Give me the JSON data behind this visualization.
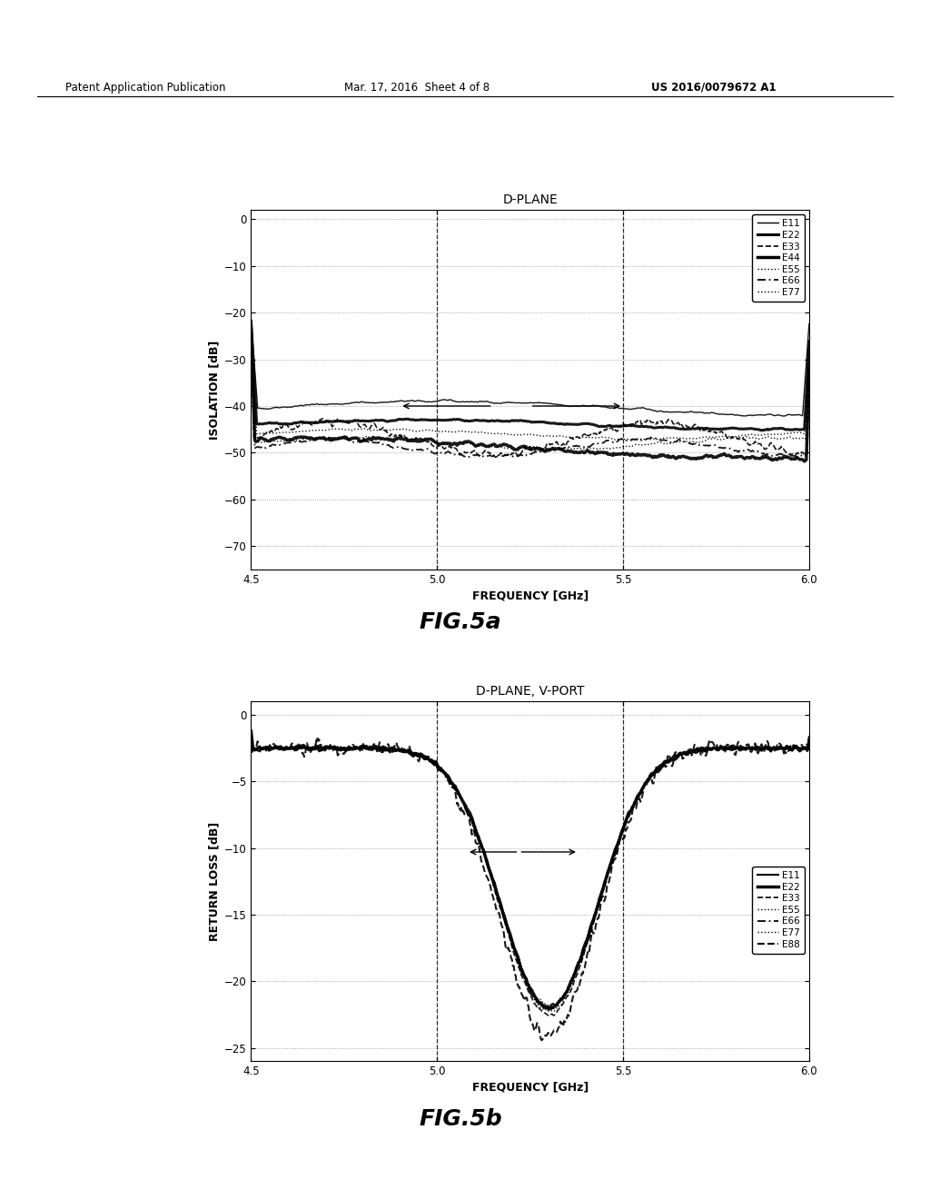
{
  "page_title": "Patent Application Publication",
  "page_date": "Mar. 17, 2016  Sheet 4 of 8",
  "page_number": "US 2016/0079672 A1",
  "fig_a": {
    "title": "D-PLANE",
    "xlabel": "FREQUENCY [GHz]",
    "ylabel": "ISOLATION [dB]",
    "xlim": [
      4.5,
      6.0
    ],
    "ylim": [
      -75,
      2
    ],
    "yticks": [
      0,
      -10,
      -20,
      -30,
      -40,
      -50,
      -60,
      -70
    ],
    "xticks": [
      4.5,
      5.0,
      5.5,
      6.0
    ],
    "vlines": [
      5.0,
      5.5
    ],
    "legend": [
      "E11",
      "E22",
      "E33",
      "E44",
      "E55",
      "E66",
      "E77"
    ],
    "fig_label": "FIG.5a"
  },
  "fig_b": {
    "title": "D-PLANE, V-PORT",
    "xlabel": "FREQUENCY [GHz]",
    "ylabel": "RETURN LOSS [dB]",
    "xlim": [
      4.5,
      6.0
    ],
    "ylim": [
      -26,
      1
    ],
    "yticks": [
      0,
      -5,
      -10,
      -15,
      -20,
      -25
    ],
    "xticks": [
      4.5,
      5.0,
      5.5,
      6.0
    ],
    "vlines": [
      5.0,
      5.5
    ],
    "legend": [
      "E11",
      "E22",
      "E33",
      "E55",
      "E66",
      "E77",
      "E88"
    ],
    "fig_label": "FIG.5b"
  },
  "bg_color": "#ffffff",
  "text_color": "#000000",
  "grid_color": "#aaaaaa"
}
